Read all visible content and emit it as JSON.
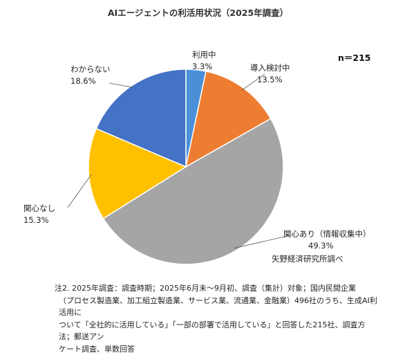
{
  "chart_data": {
    "type": "pie",
    "title": "AIエージェントの利活用状況（2025年調査）",
    "sample_size_label": "n＝215",
    "slices": [
      {
        "label": "利用中",
        "value": 3.3,
        "value_label": "3.3%",
        "color": "#4a8fd8"
      },
      {
        "label": "導入検討中",
        "value": 13.5,
        "value_label": "13.5%",
        "color": "#ed7d31"
      },
      {
        "label": "関心あり（情報収集中）",
        "value": 49.3,
        "value_label": "49.3%",
        "color": "#a5a5a5"
      },
      {
        "label": "関心なし",
        "value": 15.3,
        "value_label": "15.3%",
        "color": "#ffc000"
      },
      {
        "label": "わからない",
        "value": 18.6,
        "value_label": "18.6%",
        "color": "#4472c4"
      }
    ],
    "start_angle": "12 o'clock",
    "direction": "clockwise",
    "legend": "none (labels beside slices)"
  },
  "source": "矢野経済研究所調べ",
  "note": {
    "line1": "注2. 2025年調査：調査時期；2025年6月末～9月初、調査（集計）対象；国内民間企業",
    "line2": "（プロセス製造業、加工組立製造業、サービス業、流通業、金融業）496社のうち、生成AI利活用に",
    "line3": "ついて「全社的に活用している」「一部の部署で活用している」と回答した215社、調査方法；郵送アン",
    "line4": "ケート調査、単数回答"
  }
}
